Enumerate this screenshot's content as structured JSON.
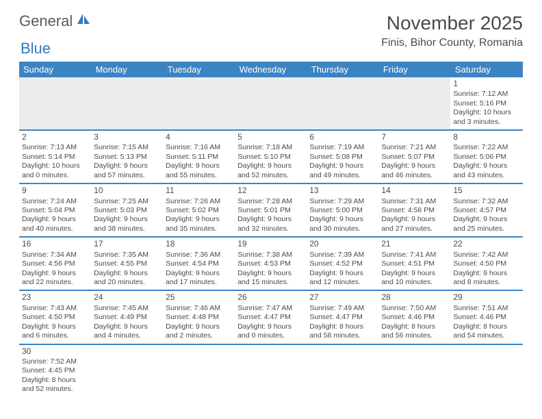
{
  "logo": {
    "main": "General",
    "accent": "Blue"
  },
  "title": "November 2025",
  "location": "Finis, Bihor County, Romania",
  "colors": {
    "header_bg": "#3b84c4",
    "header_fg": "#ffffff",
    "rule": "#3b84c4",
    "text": "#4a4a4a",
    "logo_accent": "#2f7bbf",
    "empty_bg": "#ececec"
  },
  "dayNames": [
    "Sunday",
    "Monday",
    "Tuesday",
    "Wednesday",
    "Thursday",
    "Friday",
    "Saturday"
  ],
  "weeks": [
    [
      null,
      null,
      null,
      null,
      null,
      null,
      {
        "n": "1",
        "sr": "7:12 AM",
        "ss": "5:16 PM",
        "dl1": "10 hours",
        "dl2": "and 3 minutes."
      }
    ],
    [
      {
        "n": "2",
        "sr": "7:13 AM",
        "ss": "5:14 PM",
        "dl1": "10 hours",
        "dl2": "and 0 minutes."
      },
      {
        "n": "3",
        "sr": "7:15 AM",
        "ss": "5:13 PM",
        "dl1": "9 hours",
        "dl2": "and 57 minutes."
      },
      {
        "n": "4",
        "sr": "7:16 AM",
        "ss": "5:11 PM",
        "dl1": "9 hours",
        "dl2": "and 55 minutes."
      },
      {
        "n": "5",
        "sr": "7:18 AM",
        "ss": "5:10 PM",
        "dl1": "9 hours",
        "dl2": "and 52 minutes."
      },
      {
        "n": "6",
        "sr": "7:19 AM",
        "ss": "5:08 PM",
        "dl1": "9 hours",
        "dl2": "and 49 minutes."
      },
      {
        "n": "7",
        "sr": "7:21 AM",
        "ss": "5:07 PM",
        "dl1": "9 hours",
        "dl2": "and 46 minutes."
      },
      {
        "n": "8",
        "sr": "7:22 AM",
        "ss": "5:06 PM",
        "dl1": "9 hours",
        "dl2": "and 43 minutes."
      }
    ],
    [
      {
        "n": "9",
        "sr": "7:24 AM",
        "ss": "5:04 PM",
        "dl1": "9 hours",
        "dl2": "and 40 minutes."
      },
      {
        "n": "10",
        "sr": "7:25 AM",
        "ss": "5:03 PM",
        "dl1": "9 hours",
        "dl2": "and 38 minutes."
      },
      {
        "n": "11",
        "sr": "7:26 AM",
        "ss": "5:02 PM",
        "dl1": "9 hours",
        "dl2": "and 35 minutes."
      },
      {
        "n": "12",
        "sr": "7:28 AM",
        "ss": "5:01 PM",
        "dl1": "9 hours",
        "dl2": "and 32 minutes."
      },
      {
        "n": "13",
        "sr": "7:29 AM",
        "ss": "5:00 PM",
        "dl1": "9 hours",
        "dl2": "and 30 minutes."
      },
      {
        "n": "14",
        "sr": "7:31 AM",
        "ss": "4:58 PM",
        "dl1": "9 hours",
        "dl2": "and 27 minutes."
      },
      {
        "n": "15",
        "sr": "7:32 AM",
        "ss": "4:57 PM",
        "dl1": "9 hours",
        "dl2": "and 25 minutes."
      }
    ],
    [
      {
        "n": "16",
        "sr": "7:34 AM",
        "ss": "4:56 PM",
        "dl1": "9 hours",
        "dl2": "and 22 minutes."
      },
      {
        "n": "17",
        "sr": "7:35 AM",
        "ss": "4:55 PM",
        "dl1": "9 hours",
        "dl2": "and 20 minutes."
      },
      {
        "n": "18",
        "sr": "7:36 AM",
        "ss": "4:54 PM",
        "dl1": "9 hours",
        "dl2": "and 17 minutes."
      },
      {
        "n": "19",
        "sr": "7:38 AM",
        "ss": "4:53 PM",
        "dl1": "9 hours",
        "dl2": "and 15 minutes."
      },
      {
        "n": "20",
        "sr": "7:39 AM",
        "ss": "4:52 PM",
        "dl1": "9 hours",
        "dl2": "and 12 minutes."
      },
      {
        "n": "21",
        "sr": "7:41 AM",
        "ss": "4:51 PM",
        "dl1": "9 hours",
        "dl2": "and 10 minutes."
      },
      {
        "n": "22",
        "sr": "7:42 AM",
        "ss": "4:50 PM",
        "dl1": "9 hours",
        "dl2": "and 8 minutes."
      }
    ],
    [
      {
        "n": "23",
        "sr": "7:43 AM",
        "ss": "4:50 PM",
        "dl1": "9 hours",
        "dl2": "and 6 minutes."
      },
      {
        "n": "24",
        "sr": "7:45 AM",
        "ss": "4:49 PM",
        "dl1": "9 hours",
        "dl2": "and 4 minutes."
      },
      {
        "n": "25",
        "sr": "7:46 AM",
        "ss": "4:48 PM",
        "dl1": "9 hours",
        "dl2": "and 2 minutes."
      },
      {
        "n": "26",
        "sr": "7:47 AM",
        "ss": "4:47 PM",
        "dl1": "9 hours",
        "dl2": "and 0 minutes."
      },
      {
        "n": "27",
        "sr": "7:49 AM",
        "ss": "4:47 PM",
        "dl1": "8 hours",
        "dl2": "and 58 minutes."
      },
      {
        "n": "28",
        "sr": "7:50 AM",
        "ss": "4:46 PM",
        "dl1": "8 hours",
        "dl2": "and 56 minutes."
      },
      {
        "n": "29",
        "sr": "7:51 AM",
        "ss": "4:46 PM",
        "dl1": "8 hours",
        "dl2": "and 54 minutes."
      }
    ],
    [
      {
        "n": "30",
        "sr": "7:52 AM",
        "ss": "4:45 PM",
        "dl1": "8 hours",
        "dl2": "and 52 minutes."
      },
      null,
      null,
      null,
      null,
      null,
      null
    ]
  ],
  "labels": {
    "sunrise": "Sunrise:",
    "sunset": "Sunset:",
    "daylight": "Daylight:"
  }
}
